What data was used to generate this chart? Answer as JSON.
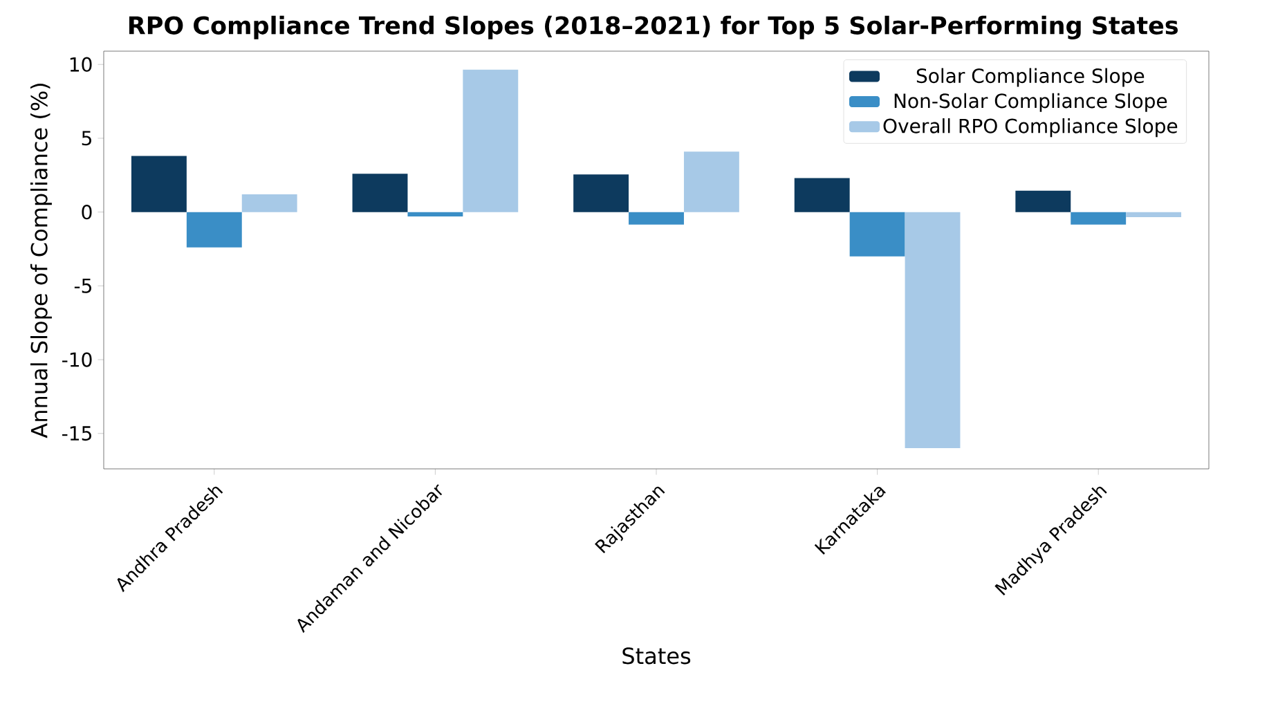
{
  "chart_data": {
    "type": "bar",
    "title": "RPO Compliance Trend Slopes (2018–2021) for Top 5 Solar-Performing States",
    "xlabel": "States",
    "ylabel": "Annual Slope of Compliance (%)",
    "categories": [
      "Andhra Pradesh",
      "Andaman and Nicobar",
      "Rajasthan",
      "Karnataka",
      "Madhya Pradesh"
    ],
    "series": [
      {
        "name": "Solar Compliance Slope",
        "color": "#0d3a5e",
        "values": [
          3.8,
          2.6,
          2.55,
          2.3,
          1.45
        ]
      },
      {
        "name": "Non-Solar Compliance Slope",
        "color": "#3a8ec6",
        "values": [
          -2.4,
          -0.3,
          -0.85,
          -3.0,
          -0.85
        ]
      },
      {
        "name": "Overall RPO Compliance Slope",
        "color": "#a7c9e7",
        "values": [
          1.2,
          9.65,
          4.1,
          -16.0,
          -0.35
        ]
      }
    ],
    "ylim": [
      -17.4,
      10.9
    ],
    "yticks": [
      -15,
      -10,
      -5,
      0,
      5,
      10
    ],
    "legend": "top right",
    "grid": false
  }
}
